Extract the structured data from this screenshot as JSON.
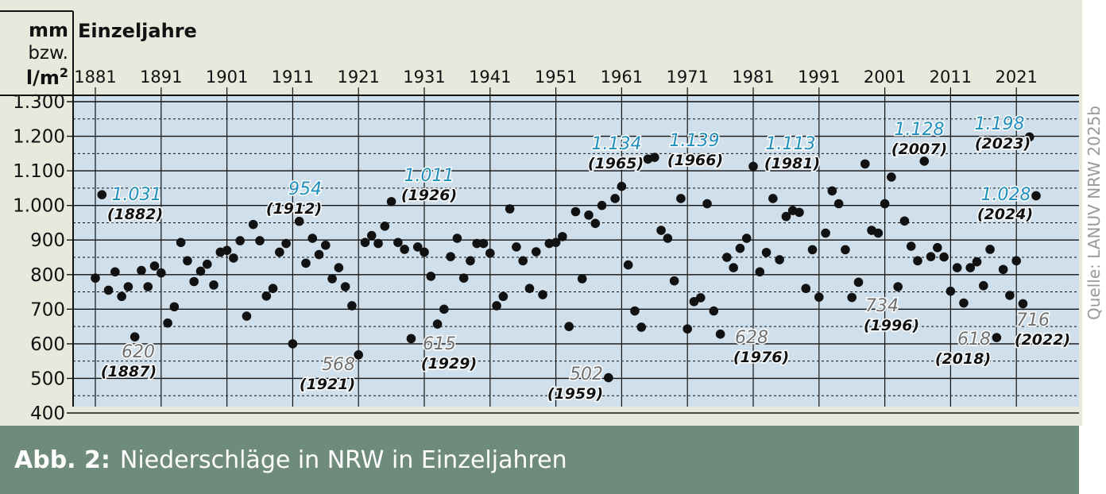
{
  "unit_label": {
    "line1": "mm",
    "line2": "bzw.",
    "line3": "l/m",
    "sup": "2"
  },
  "footer": {
    "fig_number": "Abb. 2:",
    "title": "Niederschläge in NRW in Einzeljahren"
  },
  "source": "Quelle: LANUV NRW 2025b",
  "colors": {
    "plot_bg": "#cfe0ec",
    "page_bg": "#e8e8dc",
    "footer_bg": "#6f8b7c",
    "highlight_max": "#1f8fc0",
    "highlight_min": "#6f6f6f",
    "dot": "#111111"
  },
  "chart_data": {
    "type": "scatter",
    "title": "Einzeljahre",
    "ylim": [
      400,
      1300
    ],
    "xlim": [
      1879.5,
      2025.5
    ],
    "y_ticks": [
      400,
      500,
      600,
      700,
      800,
      900,
      1000,
      1100,
      1200,
      1300
    ],
    "y_tick_labels": [
      "400",
      "500",
      "600",
      "700",
      "800",
      "900",
      "1.000",
      "1.100",
      "1.200",
      "1.300"
    ],
    "x_ticks": [
      1881,
      1891,
      1901,
      1911,
      1921,
      1931,
      1941,
      1951,
      1961,
      1971,
      1981,
      1991,
      2001,
      2011,
      2021
    ],
    "x_tick_labels": [
      "1881",
      "1891",
      "1901",
      "1911",
      "1921",
      "1931",
      "1941",
      "1951",
      "1961",
      "1971",
      "1981",
      "1991",
      "2001",
      "2011",
      "2021"
    ],
    "grid": "horizontal major lines every 100, dashed minor lines at 50s; vertical lines at decade ticks",
    "x": [
      1881,
      1882,
      1883,
      1884,
      1885,
      1886,
      1887,
      1888,
      1889,
      1890,
      1891,
      1892,
      1893,
      1894,
      1895,
      1896,
      1897,
      1898,
      1899,
      1900,
      1901,
      1902,
      1903,
      1904,
      1905,
      1906,
      1907,
      1908,
      1909,
      1910,
      1911,
      1912,
      1913,
      1914,
      1915,
      1916,
      1917,
      1918,
      1919,
      1920,
      1921,
      1922,
      1923,
      1924,
      1925,
      1926,
      1927,
      1928,
      1929,
      1930,
      1931,
      1932,
      1933,
      1934,
      1935,
      1936,
      1937,
      1938,
      1939,
      1940,
      1941,
      1942,
      1943,
      1944,
      1945,
      1946,
      1947,
      1948,
      1949,
      1950,
      1951,
      1952,
      1953,
      1954,
      1955,
      1956,
      1957,
      1958,
      1959,
      1960,
      1961,
      1962,
      1963,
      1964,
      1965,
      1966,
      1967,
      1968,
      1969,
      1970,
      1971,
      1972,
      1973,
      1974,
      1975,
      1976,
      1977,
      1978,
      1979,
      1980,
      1981,
      1982,
      1983,
      1984,
      1985,
      1986,
      1987,
      1988,
      1989,
      1990,
      1991,
      1992,
      1993,
      1994,
      1995,
      1996,
      1997,
      1998,
      1999,
      2000,
      2001,
      2002,
      2003,
      2004,
      2005,
      2006,
      2007,
      2008,
      2009,
      2010,
      2011,
      2012,
      2013,
      2014,
      2015,
      2016,
      2017,
      2018,
      2019,
      2020,
      2021,
      2022,
      2023,
      2024
    ],
    "y": [
      790,
      1031,
      755,
      808,
      737,
      765,
      620,
      812,
      765,
      825,
      805,
      660,
      707,
      893,
      840,
      780,
      810,
      830,
      770,
      865,
      870,
      848,
      898,
      680,
      945,
      898,
      738,
      760,
      865,
      890,
      600,
      954,
      833,
      905,
      858,
      885,
      788,
      820,
      765,
      710,
      568,
      893,
      913,
      890,
      940,
      1011,
      893,
      873,
      615,
      880,
      865,
      795,
      657,
      700,
      852,
      905,
      790,
      840,
      890,
      890,
      862,
      710,
      737,
      990,
      880,
      840,
      760,
      866,
      742,
      890,
      893,
      910,
      650,
      982,
      788,
      972,
      948,
      1000,
      502,
      1020,
      1055,
      828,
      695,
      648,
      1134,
      1139,
      928,
      905,
      782,
      1020,
      643,
      722,
      733,
      1005,
      695,
      628,
      850,
      820,
      876,
      905,
      1113,
      808,
      864,
      1020,
      843,
      968,
      985,
      980,
      760,
      872,
      735,
      920,
      1042,
      1005,
      872,
      734,
      778,
      1120,
      928,
      920,
      1005,
      1082,
      765,
      955,
      882,
      840,
      1128,
      852,
      878,
      851,
      752,
      820,
      718,
      820,
      837,
      768,
      873,
      618,
      815,
      740,
      840,
      716,
      1198,
      1028
    ],
    "annotations": [
      {
        "year": 1882,
        "value_label": "1.031",
        "year_label": "(1882)",
        "kind": "max"
      },
      {
        "year": 1887,
        "value_label": "620",
        "year_label": "(1887)",
        "kind": "min"
      },
      {
        "year": 1912,
        "value_label": "954",
        "year_label": "(1912)",
        "kind": "max"
      },
      {
        "year": 1921,
        "value_label": "568",
        "year_label": "(1921)",
        "kind": "min"
      },
      {
        "year": 1926,
        "value_label": "1.011",
        "year_label": "(1926)",
        "kind": "max"
      },
      {
        "year": 1929,
        "value_label": "615",
        "year_label": "(1929)",
        "kind": "min"
      },
      {
        "year": 1959,
        "value_label": "502",
        "year_label": "(1959)",
        "kind": "min"
      },
      {
        "year": 1965,
        "value_label": "1.134",
        "year_label": "(1965)",
        "kind": "max"
      },
      {
        "year": 1966,
        "value_label": "1.139",
        "year_label": "(1966)",
        "kind": "max"
      },
      {
        "year": 1976,
        "value_label": "628",
        "year_label": "(1976)",
        "kind": "min"
      },
      {
        "year": 1981,
        "value_label": "1.113",
        "year_label": "(1981)",
        "kind": "max"
      },
      {
        "year": 1996,
        "value_label": "734",
        "year_label": "(1996)",
        "kind": "min"
      },
      {
        "year": 2007,
        "value_label": "1.128",
        "year_label": "(2007)",
        "kind": "max"
      },
      {
        "year": 2018,
        "value_label": "618",
        "year_label": "(2018)",
        "kind": "min"
      },
      {
        "year": 2022,
        "value_label": "716",
        "year_label": "(2022)",
        "kind": "min"
      },
      {
        "year": 2023,
        "value_label": "1.198",
        "year_label": "(2023)",
        "kind": "max"
      },
      {
        "year": 2024,
        "value_label": "1.028",
        "year_label": "(2024)",
        "kind": "max"
      }
    ]
  }
}
